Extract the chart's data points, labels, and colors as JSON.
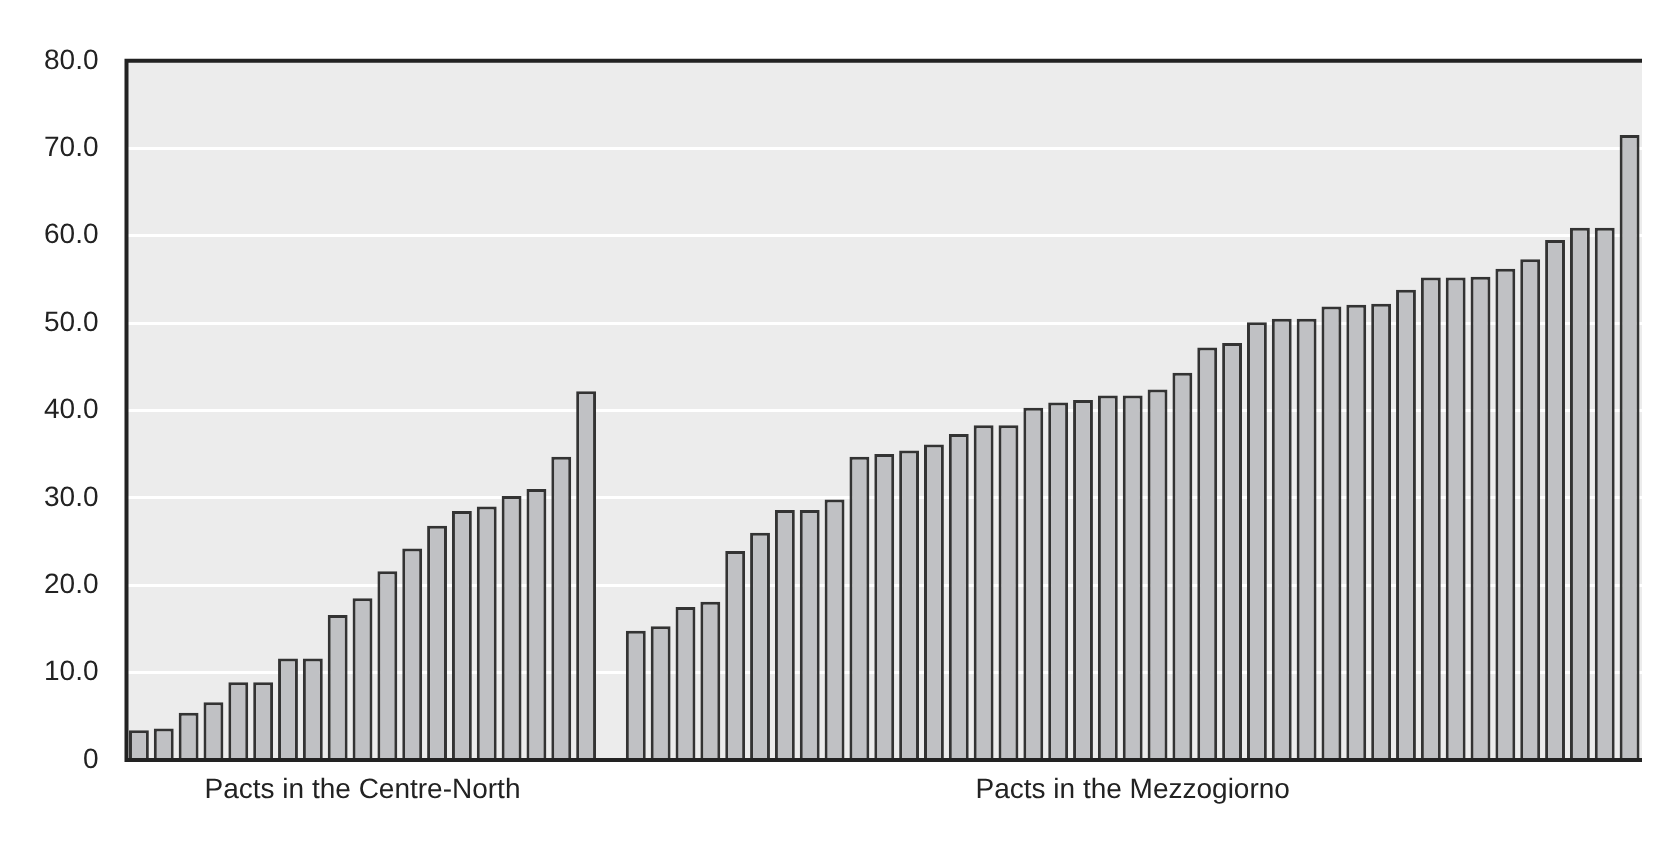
{
  "chart_data": {
    "type": "bar",
    "categories": [
      null,
      null,
      null,
      null,
      null,
      null,
      null,
      null,
      null,
      null,
      null,
      null,
      null,
      null,
      null,
      null,
      null,
      null,
      null,
      null,
      null,
      null,
      null,
      null,
      null,
      null,
      null,
      null,
      null,
      null,
      null,
      null,
      null,
      null,
      null,
      null,
      null,
      null,
      null,
      null,
      null,
      null,
      null,
      null,
      null,
      null,
      null,
      null,
      null,
      null,
      null,
      null,
      null,
      null,
      null,
      null,
      null,
      null,
      null,
      null,
      null
    ],
    "values": [
      3.4,
      3.6,
      5.4,
      6.6,
      8.9,
      8.9,
      11.6,
      11.6,
      16.6,
      18.5,
      21.6,
      24.2,
      26.8,
      28.5,
      29.0,
      30.2,
      31.0,
      34.7,
      42.2,
      null,
      14.8,
      15.3,
      17.5,
      18.1,
      23.9,
      26.0,
      28.6,
      28.6,
      29.8,
      34.7,
      35.0,
      35.4,
      36.1,
      37.3,
      38.3,
      38.3,
      40.3,
      40.9,
      41.2,
      41.7,
      41.7,
      42.4,
      44.3,
      47.2,
      47.7,
      50.1,
      50.5,
      50.5,
      51.9,
      52.1,
      52.2,
      53.8,
      55.2,
      55.2,
      55.3,
      56.2,
      57.3,
      59.5,
      60.9,
      60.9,
      71.5
    ],
    "color": "#c0c1c4",
    "ylim": [
      0,
      80
    ],
    "yticks": [
      0,
      {
        "value": 10,
        "label": "10.0"
      },
      {
        "value": 20,
        "label": "20.0"
      },
      {
        "value": 30,
        "label": "30.0"
      },
      {
        "value": 40,
        "label": "40.0"
      },
      {
        "value": 50,
        "label": "50.0"
      },
      {
        "value": 60,
        "label": "60.0"
      },
      {
        "value": 70,
        "label": "70.0"
      },
      {
        "value": 80,
        "label": "80.0"
      }
    ],
    "grid": "y",
    "legend": false,
    "annotations": [
      "Pacts in the Centre-North",
      "Pacts in the Mezzogiorno"
    ]
  }
}
